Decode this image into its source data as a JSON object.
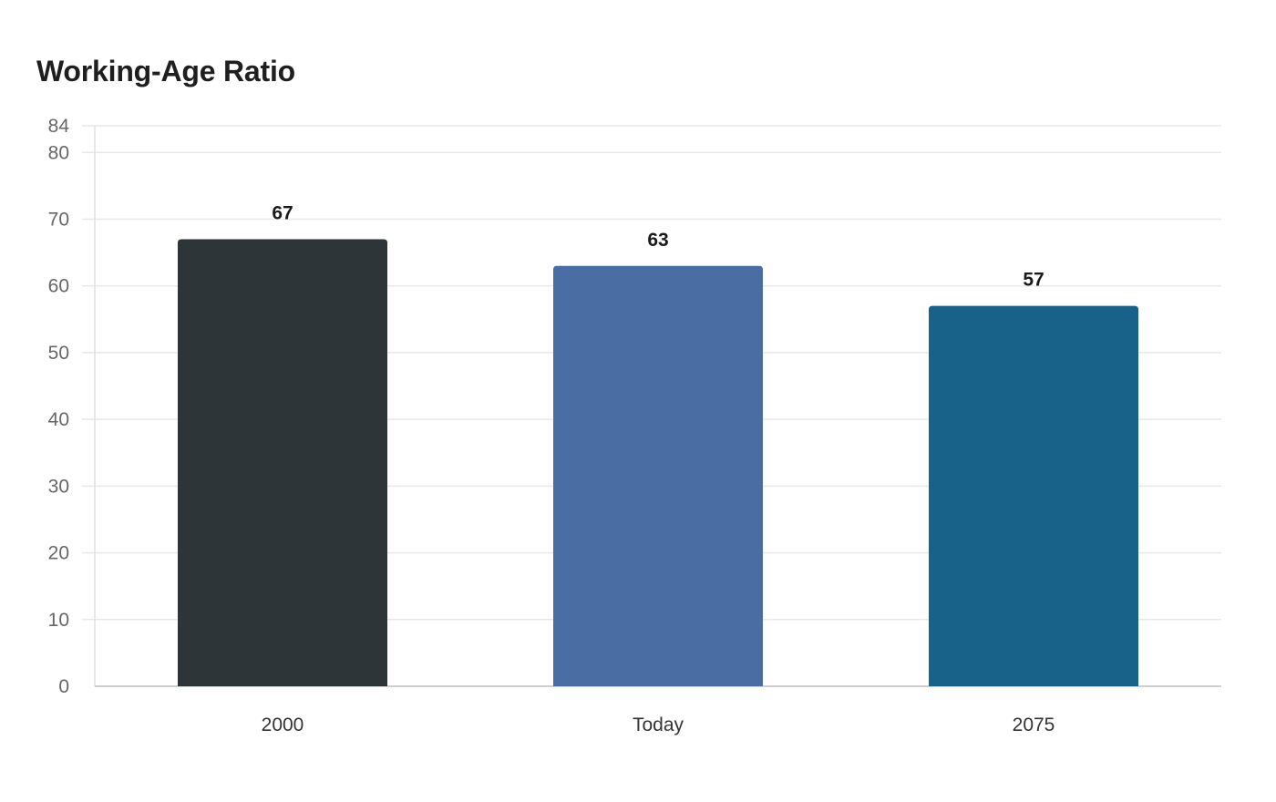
{
  "chart_data": {
    "type": "bar",
    "title": "Working-Age Ratio",
    "xlabel": "",
    "ylabel": "",
    "categories": [
      "2000",
      "Today",
      "2075"
    ],
    "values": [
      67,
      63,
      57
    ],
    "data_labels": [
      "67",
      "63",
      "57"
    ],
    "bar_colors": [
      "#2d3538",
      "#4a6da3",
      "#186189"
    ],
    "ylim": [
      0,
      84
    ],
    "yticks": [
      0,
      10,
      20,
      30,
      40,
      50,
      60,
      70,
      80,
      84
    ],
    "grid": true,
    "legend": "none"
  }
}
